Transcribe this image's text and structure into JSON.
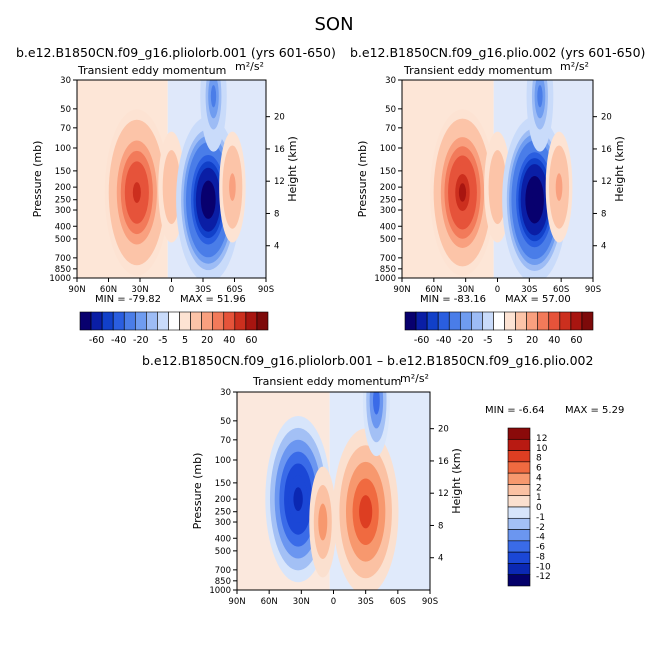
{
  "figure_title": "SON",
  "chart_data": [
    {
      "type": "heatmap",
      "title": "b.e12.B1850CN.f09_g16.pliolorb.001 (yrs 601-650)",
      "subtitle": "Transient eddy momentum",
      "units_html": "m²/s²",
      "xlabel": "",
      "ylabel": "Pressure (mb)",
      "ylabel_right": "Height (km)",
      "x_ticks": [
        "90N",
        "60N",
        "30N",
        "0",
        "30S",
        "60S",
        "90S"
      ],
      "y_ticks": [
        "30",
        "50",
        "70",
        "100",
        "150",
        "200",
        "250",
        "300",
        "400",
        "500",
        "700",
        "850",
        "1000"
      ],
      "y_ticks_right": [
        "4",
        "8",
        "12",
        "16",
        "20"
      ],
      "min_label": "MIN = -79.82",
      "max_label": "MAX = 51.96",
      "min": -79.82,
      "max": 51.96,
      "colorbar_labels": [
        "-60",
        "-40",
        "-20",
        "-5",
        "5",
        "20",
        "40",
        "60"
      ],
      "features": [
        {
          "lat": 33,
          "p": 220,
          "value": 50,
          "sign": "positive"
        },
        {
          "lat": 0,
          "p": 200,
          "value": 15,
          "sign": "positive"
        },
        {
          "lat": -35,
          "p": 250,
          "value": -78,
          "sign": "negative"
        },
        {
          "lat": -58,
          "p": 200,
          "value": 25,
          "sign": "positive"
        },
        {
          "lat": -40,
          "p": 40,
          "value": -30,
          "sign": "negative"
        }
      ]
    },
    {
      "type": "heatmap",
      "title": "b.e12.B1850CN.f09_g16.plio.002 (yrs 601-650)",
      "subtitle": "Transient eddy momentum",
      "units_html": "m²/s²",
      "xlabel": "",
      "ylabel": "Pressure (mb)",
      "ylabel_right": "Height (km)",
      "x_ticks": [
        "90N",
        "60N",
        "30N",
        "0",
        "30S",
        "60S",
        "90S"
      ],
      "y_ticks": [
        "30",
        "50",
        "70",
        "100",
        "150",
        "200",
        "250",
        "300",
        "400",
        "500",
        "700",
        "850",
        "1000"
      ],
      "y_ticks_right": [
        "4",
        "8",
        "12",
        "16",
        "20"
      ],
      "min_label": "MIN = -83.16",
      "max_label": "MAX = 57.00",
      "min": -83.16,
      "max": 57.0,
      "colorbar_labels": [
        "-60",
        "-40",
        "-20",
        "-5",
        "5",
        "20",
        "40",
        "60"
      ],
      "features": [
        {
          "lat": 33,
          "p": 220,
          "value": 55,
          "sign": "positive"
        },
        {
          "lat": 0,
          "p": 200,
          "value": 15,
          "sign": "positive"
        },
        {
          "lat": -35,
          "p": 250,
          "value": -82,
          "sign": "negative"
        },
        {
          "lat": -58,
          "p": 200,
          "value": 25,
          "sign": "positive"
        },
        {
          "lat": -40,
          "p": 40,
          "value": -30,
          "sign": "negative"
        }
      ]
    },
    {
      "type": "heatmap",
      "title": "b.e12.B1850CN.f09_g16.pliolorb.001 – b.e12.B1850CN.f09_g16.plio.002",
      "subtitle": "Transient eddy momentum",
      "units_html": "m²/s²",
      "xlabel": "",
      "ylabel": "Pressure (mb)",
      "ylabel_right": "Height (km)",
      "x_ticks": [
        "90N",
        "60N",
        "30N",
        "0",
        "30S",
        "60S",
        "90S"
      ],
      "y_ticks": [
        "30",
        "50",
        "70",
        "100",
        "150",
        "200",
        "250",
        "300",
        "400",
        "500",
        "700",
        "850",
        "1000"
      ],
      "y_ticks_right": [
        "4",
        "8",
        "12",
        "16",
        "20"
      ],
      "min_label": "MIN = -6.64",
      "max_label": "MAX = 5.29",
      "min": -6.64,
      "max": 5.29,
      "colorbar_labels": [
        "12",
        "10",
        "8",
        "6",
        "4",
        "2",
        "1",
        "0",
        "-1",
        "-2",
        "-4",
        "-6",
        "-8",
        "-10",
        "-12"
      ],
      "features": [
        {
          "lat": 33,
          "p": 200,
          "value": -6.5,
          "sign": "negative"
        },
        {
          "lat": -30,
          "p": 250,
          "value": 5.2,
          "sign": "positive"
        },
        {
          "lat": 10,
          "p": 300,
          "value": 2.5,
          "sign": "positive"
        },
        {
          "lat": -40,
          "p": 35,
          "value": -4,
          "sign": "negative"
        }
      ]
    }
  ],
  "palettes": {
    "top": [
      "#08006e",
      "#0a1ea5",
      "#1140c9",
      "#2a5ee0",
      "#4a7de8",
      "#6f9cf0",
      "#9dbcf5",
      "#c9dbfa",
      "#ffffff",
      "#fde3d3",
      "#fcc4a8",
      "#f9a07f",
      "#f27a5a",
      "#e6533a",
      "#cc2f1e",
      "#a81510",
      "#7d0a0a"
    ],
    "diff": [
      "#04006a",
      "#0b28b3",
      "#1b47d6",
      "#3a6be8",
      "#6b96f0",
      "#a3c0f5",
      "#d7e5fb",
      "#fbe0cf",
      "#fbc1a3",
      "#f7986e",
      "#f06a40",
      "#dd3e22",
      "#b81a12",
      "#8a0a0a"
    ]
  }
}
